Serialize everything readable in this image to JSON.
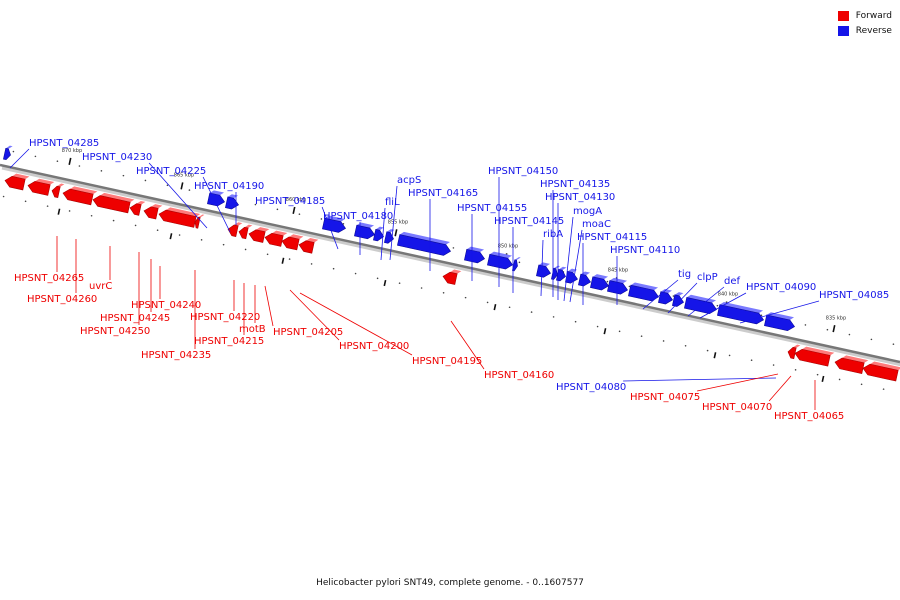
{
  "colors": {
    "forward": "#ee0000",
    "reverse": "#1515e8",
    "axis": "#777777"
  },
  "legend": [
    {
      "key": "forward",
      "label": "Forward"
    },
    {
      "key": "reverse",
      "label": "Reverse"
    }
  ],
  "caption": "Helicobacter pylori SNT49, complete genome. - 0..1607577",
  "ticks": [
    "870 kbp",
    "865 kbp",
    "860 kbp",
    "855 kbp",
    "850 kbp",
    "845 kbp",
    "840 kbp",
    "835 kbp"
  ],
  "reverse_labels": [
    "HPSNT_04285",
    "HPSNT_04230",
    "HPSNT_04225",
    "HPSNT_04190",
    "HPSNT_04185",
    "HPSNT_04180",
    "fliL",
    "acpS",
    "HPSNT_04165",
    "HPSNT_04155",
    "HPSNT_04150",
    "HPSNT_04145",
    "ribA",
    "HPSNT_04135",
    "HPSNT_04130",
    "mogA",
    "moaC",
    "HPSNT_04115",
    "HPSNT_04110",
    "tig",
    "clpP",
    "def",
    "HPSNT_04090",
    "HPSNT_04085",
    "HPSNT_04080"
  ],
  "forward_labels": [
    "HPSNT_04265",
    "HPSNT_04260",
    "uvrC",
    "HPSNT_04250",
    "HPSNT_04245",
    "HPSNT_04240",
    "HPSNT_04235",
    "HPSNT_04220",
    "HPSNT_04215",
    "motB",
    "HPSNT_04205",
    "HPSNT_04200",
    "HPSNT_04195",
    "HPSNT_04160",
    "HPSNT_04075",
    "HPSNT_04070",
    "HPSNT_04065"
  ]
}
